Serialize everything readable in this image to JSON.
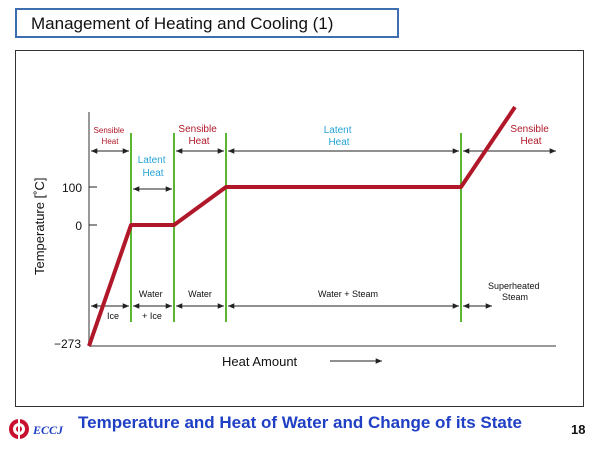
{
  "slide": {
    "title": "Management of Heating and Cooling (1)",
    "footer_title": "Temperature and Heat of Water and Change of its State",
    "page_number": "18",
    "logo_text": "ECCJ"
  },
  "diagram": {
    "y_axis": {
      "label": "Temperature [˚C]",
      "ticks": [
        "100",
        "0",
        "−273"
      ]
    },
    "x_axis": {
      "label": "Heat Amount"
    },
    "heat_labels": [
      [
        "Sensible",
        "Heat"
      ],
      [
        "Latent",
        "Heat"
      ],
      [
        "Sensible",
        "Heat"
      ],
      [
        "Latent",
        "Heat"
      ],
      [
        "Sensible",
        "Heat"
      ]
    ],
    "state_labels": [
      [
        "Ice"
      ],
      [
        "Water",
        "+ Ice"
      ],
      [
        "Water"
      ],
      [
        "Water + Steam"
      ],
      [
        "Superheated",
        "Steam"
      ]
    ]
  },
  "colors": {
    "curve": "#b0182a",
    "sensible_label": "#b0182a",
    "latent_label": "#27a3d6",
    "phase_line": "#5cb533",
    "title_border": "#3d6fb0",
    "footer_title": "#1f3fc4"
  }
}
